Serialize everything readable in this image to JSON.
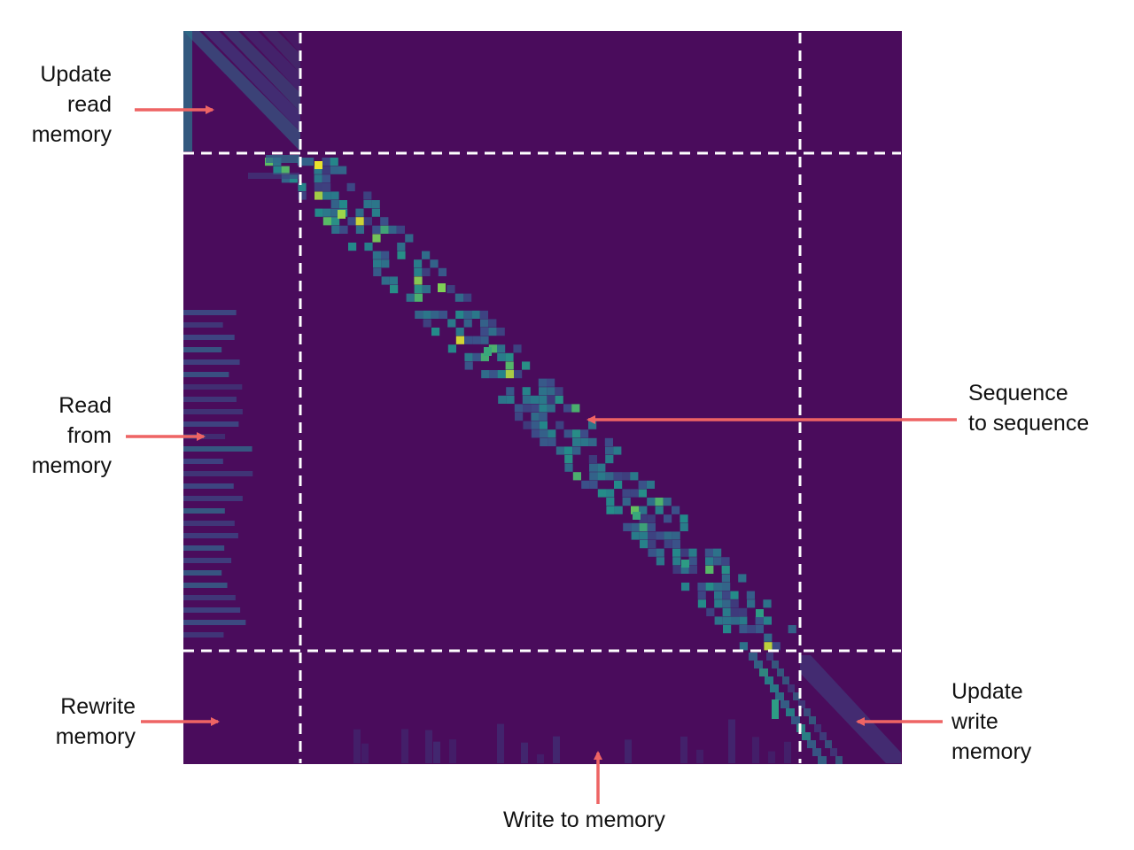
{
  "labels": {
    "update_read_memory": [
      "Update",
      "read",
      "memory"
    ],
    "read_from_memory": [
      "Read",
      "from",
      "memory"
    ],
    "rewrite_memory": [
      "Rewrite",
      "memory"
    ],
    "sequence_to_sequence": [
      "Sequence",
      "to sequence"
    ],
    "update_write_memory": [
      "Update",
      "write",
      "memory"
    ],
    "write_to_memory": [
      "Write to memory"
    ]
  },
  "colors": {
    "background": "#4a0c5c",
    "arrow": "#ee6464",
    "divider": "#ffffff",
    "colormap": [
      "#440154",
      "#3b528b",
      "#21918c",
      "#5ec962",
      "#fde725"
    ]
  },
  "heatmap": {
    "colormap": "viridis",
    "grid": "dashed white lines separating memory and sequence blocks"
  }
}
